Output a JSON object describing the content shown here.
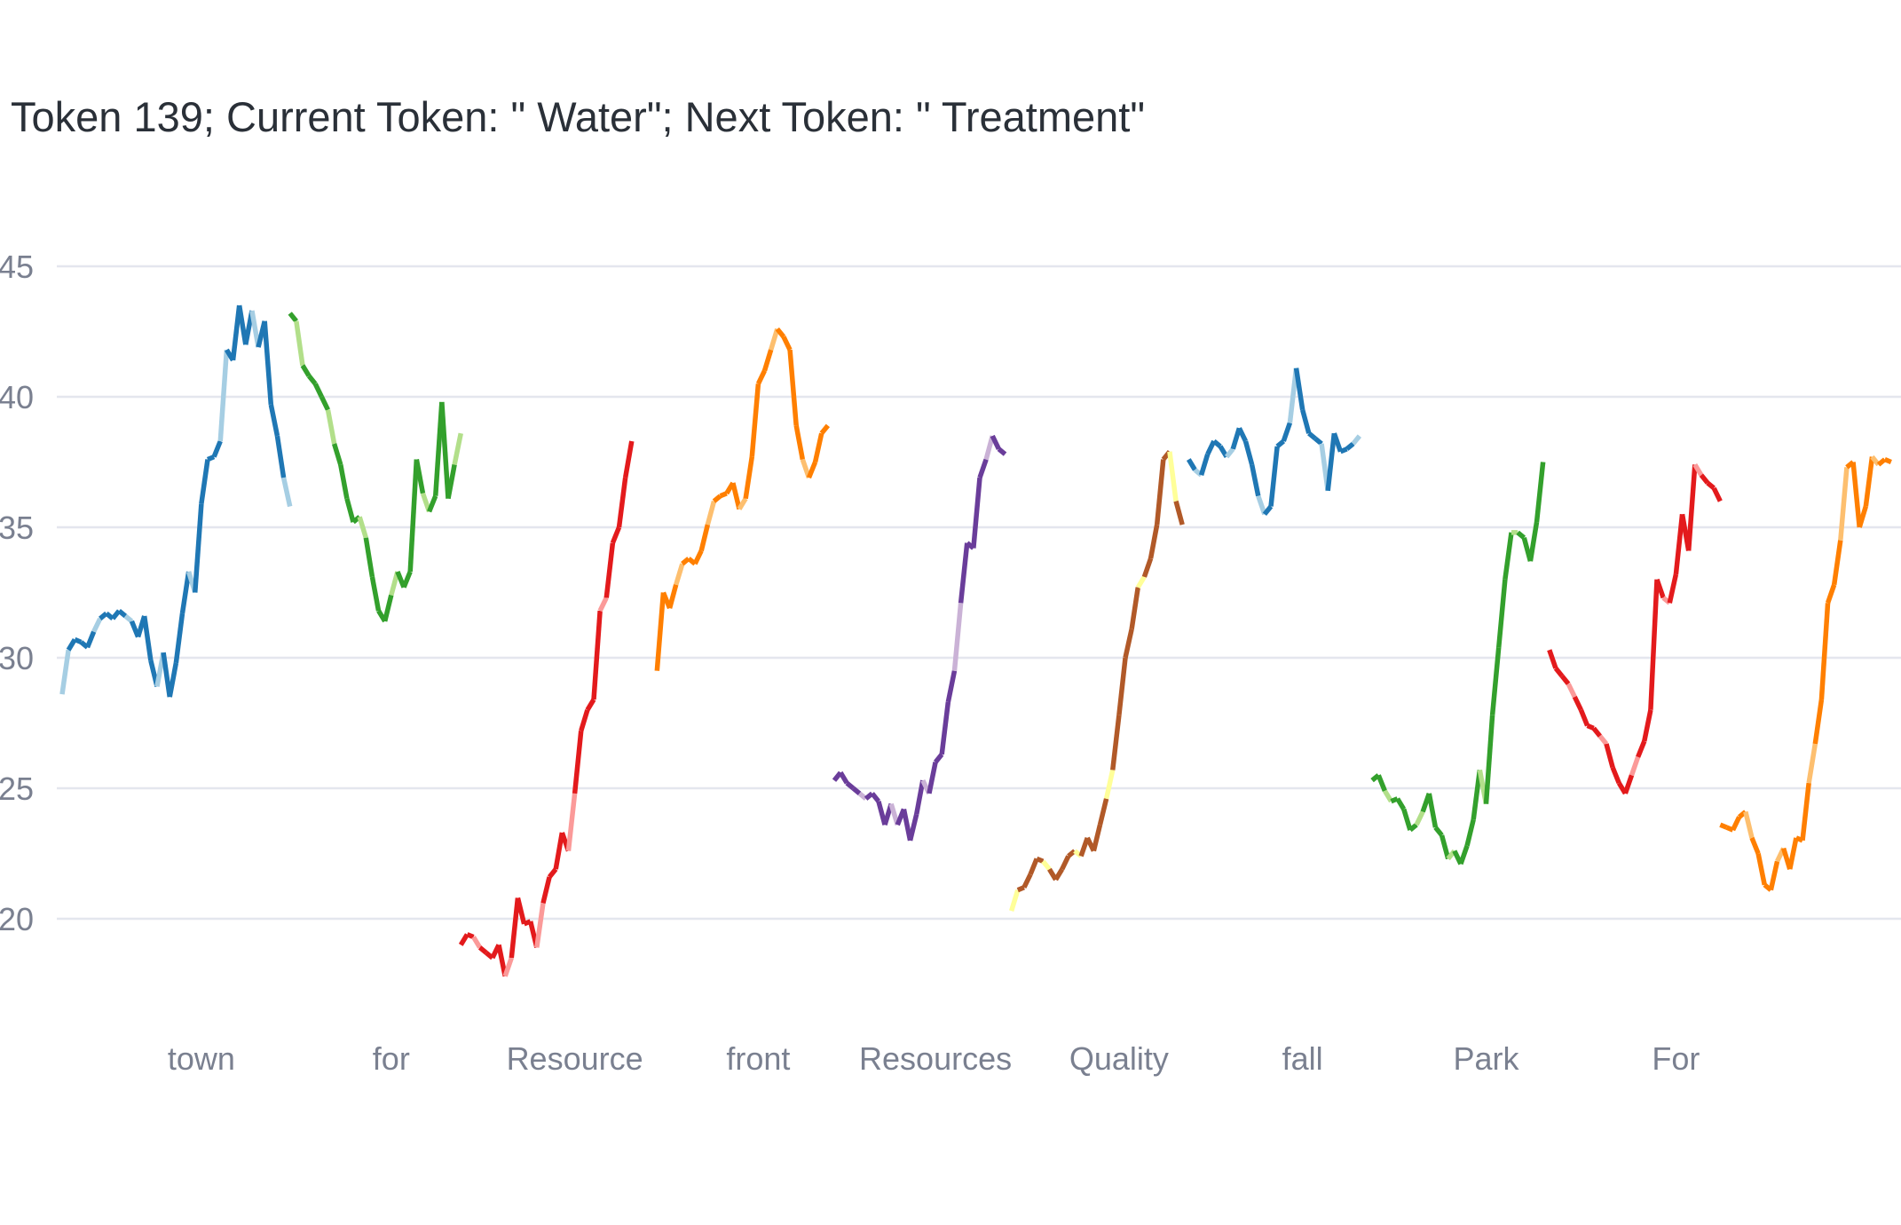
{
  "chart_data": {
    "type": "line",
    "title": "Token 139; Current Token: \" Water\"; Next Token: \" Treatment\"",
    "xlabel": "",
    "ylabel": "",
    "ylim": [
      17,
      47
    ],
    "y_ticks": [
      20,
      25,
      30,
      35,
      40,
      45
    ],
    "x_tick_labels": [
      "town",
      "for",
      "Resource",
      "front",
      "Resources",
      "Quality",
      "fall",
      "Park",
      "For"
    ],
    "x_tick_positions": [
      22,
      52,
      81,
      110,
      138,
      167,
      196,
      225,
      255
    ],
    "xlim": [
      0,
      290
    ],
    "grid": true,
    "legend": "none",
    "series": [
      {
        "color": "#1f77b4",
        "light": "#a6cee3",
        "x": [
          0,
          1,
          2,
          3,
          4,
          5,
          6,
          7,
          8,
          9,
          10,
          11,
          12,
          13,
          14,
          15,
          16,
          17,
          18,
          19,
          20,
          21,
          22,
          23,
          24,
          25,
          26,
          27,
          28,
          29,
          30,
          31,
          32,
          33,
          34,
          35,
          36
        ],
        "y": [
          28.6,
          30.3,
          30.7,
          30.6,
          30.4,
          31.0,
          31.5,
          31.7,
          31.5,
          31.8,
          31.6,
          31.4,
          30.8,
          31.6,
          29.9,
          28.9,
          30.2,
          28.5,
          29.8,
          31.7,
          33.3,
          32.5,
          35.9,
          37.6,
          37.7,
          38.3,
          41.8,
          41.4,
          43.5,
          42.0,
          43.3,
          41.9,
          42.9,
          39.7,
          38.5,
          36.9,
          35.8
        ]
      },
      {
        "color": "#33a02c",
        "light": "#b2df8a",
        "x": [
          36,
          37,
          38,
          39,
          40,
          41,
          42,
          43,
          44,
          45,
          46,
          47,
          48,
          49,
          50,
          51,
          52,
          53,
          54,
          55,
          56,
          57,
          58,
          59,
          60,
          61,
          62,
          63
        ],
        "y": [
          43.2,
          42.9,
          41.2,
          40.8,
          40.5,
          40.0,
          39.5,
          38.2,
          37.4,
          36.1,
          35.2,
          35.4,
          34.6,
          33.1,
          31.8,
          31.4,
          32.4,
          33.3,
          32.7,
          33.3,
          37.6,
          36.3,
          35.6,
          36.2,
          39.8,
          36.1,
          37.4,
          38.6
        ]
      },
      {
        "color": "#e31a1c",
        "light": "#fb9a99",
        "x": [
          63,
          64,
          65,
          66,
          67,
          68,
          69,
          70,
          71,
          72,
          73,
          74,
          75,
          76,
          77,
          78,
          79,
          80,
          81,
          82,
          83,
          84,
          85,
          86,
          87,
          88,
          89,
          90
        ],
        "y": [
          19.0,
          19.4,
          19.3,
          18.9,
          18.7,
          18.5,
          19.0,
          17.8,
          18.5,
          20.8,
          19.8,
          19.9,
          18.9,
          20.6,
          21.6,
          21.9,
          23.3,
          22.6,
          24.8,
          27.2,
          28.0,
          28.4,
          31.8,
          32.3,
          34.4,
          35.0,
          36.9,
          38.3
        ]
      },
      {
        "color": "#ff7f00",
        "light": "#fdbf6f",
        "x": [
          94,
          95,
          96,
          97,
          98,
          99,
          100,
          101,
          102,
          103,
          104,
          105,
          106,
          107,
          108,
          109,
          110,
          111,
          112,
          113,
          114,
          115,
          116,
          117,
          118,
          119,
          120,
          121
        ],
        "y": [
          29.5,
          32.5,
          31.9,
          32.8,
          33.6,
          33.8,
          33.6,
          34.1,
          35.1,
          36.0,
          36.2,
          36.3,
          36.7,
          35.7,
          36.1,
          37.7,
          40.5,
          41.0,
          41.8,
          42.6,
          42.3,
          41.8,
          38.9,
          37.6,
          36.9,
          37.5,
          38.6,
          38.9
        ]
      },
      {
        "color": "#6a3d9a",
        "light": "#cab2d6",
        "x": [
          122,
          123,
          124,
          125,
          126,
          127,
          128,
          129,
          130,
          131,
          132,
          133,
          134,
          135,
          136,
          137,
          138,
          139,
          140,
          141,
          142,
          143,
          144,
          145,
          146,
          147,
          148,
          149
        ],
        "y": [
          25.3,
          25.6,
          25.2,
          25.0,
          24.8,
          24.6,
          24.8,
          24.5,
          23.6,
          24.4,
          23.6,
          24.2,
          23.0,
          24.0,
          25.3,
          24.8,
          26.0,
          26.3,
          28.3,
          29.5,
          32.1,
          34.4,
          34.2,
          36.9,
          37.6,
          38.5,
          38.0,
          37.8
        ]
      },
      {
        "color": "#b15928",
        "light": "#ffff99",
        "x": [
          150,
          151,
          152,
          153,
          154,
          155,
          156,
          157,
          158,
          159,
          160,
          161,
          162,
          163,
          164,
          165,
          166,
          167,
          168,
          169,
          170,
          171,
          172,
          173,
          174,
          175,
          176,
          177
        ],
        "y": [
          20.3,
          21.1,
          21.2,
          21.7,
          22.3,
          22.2,
          21.9,
          21.5,
          21.9,
          22.4,
          22.6,
          22.4,
          23.1,
          22.6,
          23.6,
          24.6,
          25.7,
          27.8,
          30.0,
          31.1,
          32.7,
          33.1,
          33.8,
          35.1,
          37.6,
          37.9,
          36.0,
          35.1
        ]
      },
      {
        "color": "#1f77b4",
        "light": "#a6cee3",
        "x": [
          178,
          179,
          180,
          181,
          182,
          183,
          184,
          185,
          186,
          187,
          188,
          189,
          190,
          191,
          192,
          193,
          194,
          195,
          196,
          197,
          198,
          199,
          200,
          201,
          202,
          203,
          204,
          205
        ],
        "y": [
          37.6,
          37.2,
          37.0,
          37.8,
          38.3,
          38.1,
          37.7,
          38.0,
          38.8,
          38.3,
          37.4,
          36.2,
          35.5,
          35.8,
          38.1,
          38.3,
          39.0,
          41.1,
          39.5,
          38.6,
          38.4,
          38.2,
          36.4,
          38.6,
          37.9,
          38.0,
          38.2,
          38.5
        ]
      },
      {
        "color": "#33a02c",
        "light": "#b2df8a",
        "x": [
          207,
          208,
          209,
          210,
          211,
          212,
          213,
          214,
          215,
          216,
          217,
          218,
          219,
          220,
          221,
          222,
          223,
          224,
          225,
          226,
          227,
          228,
          229,
          230,
          231,
          232,
          233,
          234
        ],
        "y": [
          25.3,
          25.5,
          24.9,
          24.5,
          24.6,
          24.2,
          23.4,
          23.6,
          24.1,
          24.8,
          23.5,
          23.2,
          22.3,
          22.6,
          22.1,
          22.8,
          23.8,
          25.7,
          24.4,
          27.8,
          30.4,
          33.0,
          34.8,
          34.8,
          34.6,
          33.7,
          35.2,
          37.5
        ]
      },
      {
        "color": "#e31a1c",
        "light": "#fb9a99",
        "x": [
          235,
          236,
          237,
          238,
          239,
          240,
          241,
          242,
          243,
          244,
          245,
          246,
          247,
          248,
          249,
          250,
          251,
          252,
          253,
          254,
          255,
          256,
          257,
          258,
          259,
          260,
          261,
          262
        ],
        "y": [
          30.3,
          29.6,
          29.3,
          29.0,
          28.5,
          28.0,
          27.4,
          27.3,
          27.0,
          26.7,
          25.8,
          25.2,
          24.8,
          25.5,
          26.2,
          26.8,
          28.0,
          33.0,
          32.3,
          32.1,
          33.2,
          35.5,
          34.1,
          37.4,
          37.0,
          36.7,
          36.5,
          36.0
        ]
      },
      {
        "color": "#ff7f00",
        "light": "#fdbf6f",
        "x": [
          262,
          263,
          264,
          265,
          266,
          267,
          268,
          269,
          270,
          271,
          272,
          273,
          274,
          275,
          276,
          277,
          278,
          279,
          280,
          281,
          282,
          283,
          284,
          285,
          286,
          287,
          288,
          289
        ],
        "y": [
          23.6,
          23.5,
          23.4,
          23.9,
          24.1,
          23.1,
          22.5,
          21.3,
          21.1,
          22.2,
          22.7,
          21.9,
          23.1,
          23.0,
          25.2,
          26.7,
          28.4,
          32.1,
          32.8,
          34.5,
          37.3,
          37.5,
          35.0,
          35.8,
          37.7,
          37.4,
          37.6,
          37.5
        ]
      }
    ]
  }
}
